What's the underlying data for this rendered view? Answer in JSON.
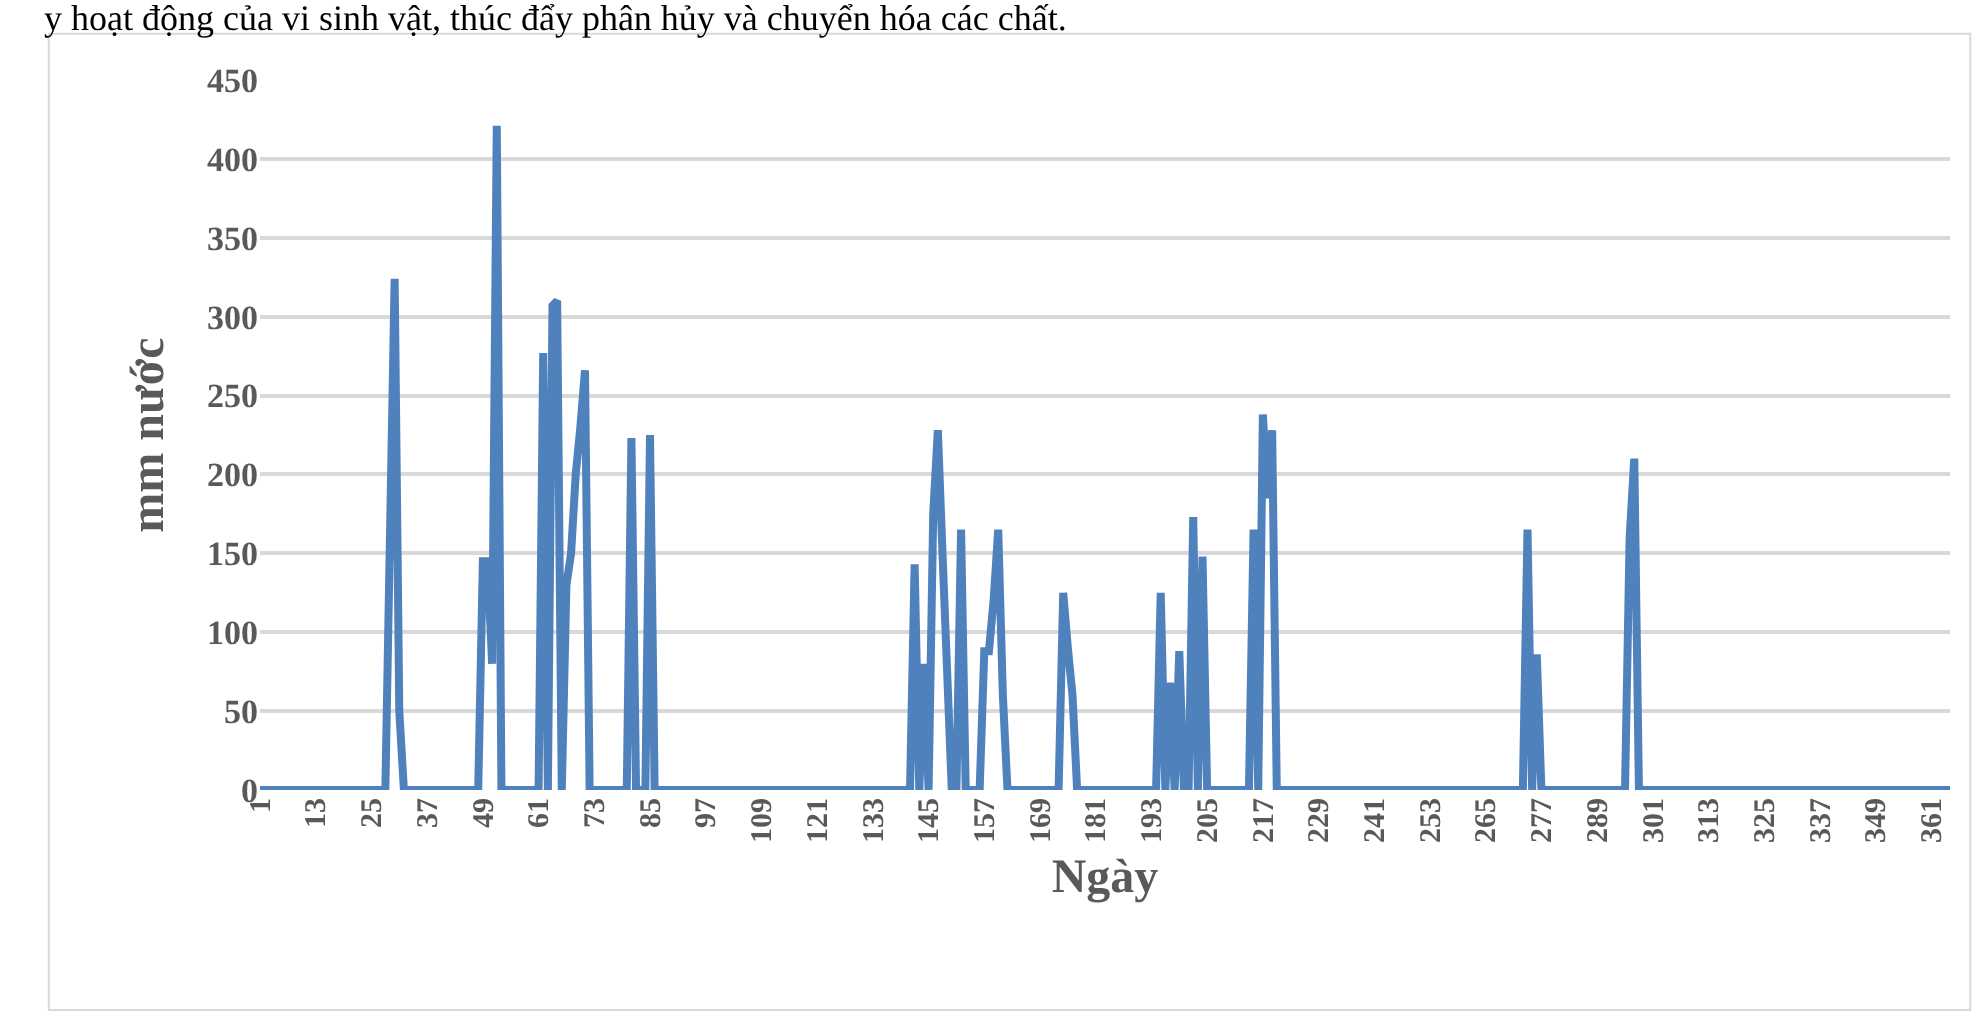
{
  "chart_data": {
    "type": "line",
    "xlabel": "Ngày",
    "ylabel": "mm nước",
    "annotations": [
      "y hoạt động của vi sinh vật, thúc đẩy phân hủy và chuyển hóa các chất."
    ],
    "x": [
      1,
      28,
      30,
      31,
      32,
      48,
      49,
      50,
      51,
      52,
      53,
      61,
      62,
      63,
      64,
      65,
      66,
      67,
      68,
      69,
      70,
      71,
      72,
      80,
      81,
      82,
      83,
      84,
      85,
      86,
      141,
      142,
      143,
      144,
      145,
      146,
      147,
      148,
      149,
      150,
      151,
      152,
      153,
      156,
      157,
      158,
      159,
      160,
      161,
      162,
      173,
      174,
      175,
      176,
      177,
      194,
      195,
      196,
      197,
      198,
      199,
      200,
      201,
      202,
      203,
      204,
      205,
      214,
      215,
      216,
      217,
      218,
      219,
      220,
      273,
      274,
      275,
      276,
      277,
      295,
      296,
      297,
      298,
      365
    ],
    "series": [
      {
        "color": "#4f81bd",
        "values": [
          0,
          0,
          324,
          50,
          0,
          0,
          145,
          145,
          80,
          421,
          0,
          0,
          277,
          0,
          307,
          310,
          0,
          130,
          150,
          200,
          230,
          266,
          0,
          0,
          223,
          0,
          0,
          0,
          225,
          0,
          0,
          143,
          0,
          80,
          0,
          175,
          228,
          150,
          75,
          0,
          0,
          165,
          0,
          0,
          88,
          88,
          120,
          165,
          60,
          0,
          0,
          125,
          90,
          60,
          0,
          0,
          125,
          0,
          68,
          0,
          88,
          0,
          0,
          173,
          0,
          148,
          0,
          0,
          165,
          0,
          238,
          185,
          228,
          0,
          0,
          165,
          0,
          86,
          0,
          0,
          160,
          210,
          0,
          0
        ]
      }
    ],
    "xlim": [
      1,
      365
    ],
    "xticks": [
      1,
      13,
      25,
      37,
      49,
      61,
      73,
      85,
      97,
      109,
      121,
      133,
      145,
      157,
      169,
      181,
      193,
      205,
      217,
      229,
      241,
      253,
      265,
      277,
      289,
      301,
      313,
      325,
      337,
      349,
      361
    ],
    "ylim": [
      0,
      450
    ],
    "yticks": [
      0,
      50,
      100,
      150,
      200,
      250,
      300,
      350,
      400,
      450
    ],
    "grid": "y",
    "legend": false,
    "marker": "none",
    "line_style": "solid"
  }
}
